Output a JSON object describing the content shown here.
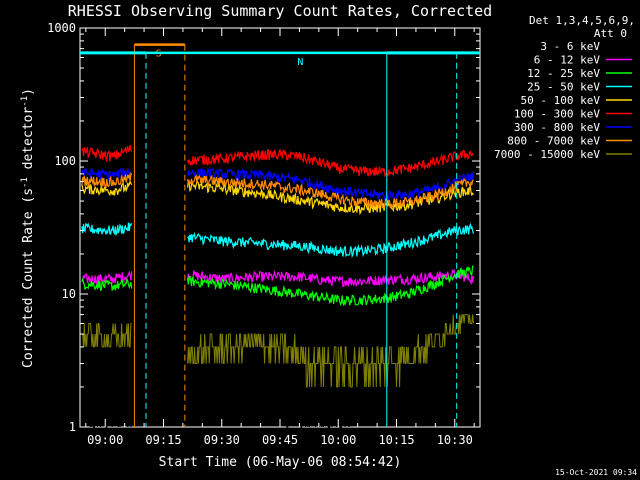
{
  "chart_data": {
    "type": "line",
    "title": "RHESSI Observing Summary Count Rates, Corrected",
    "xlabel": "Start Time (06-May-06 08:54:42)",
    "ylabel": "Corrected Count Rate (s",
    "ylabel_sup1": "-1",
    "ylabel_mid": " detector",
    "ylabel_sup2": "-1",
    "ylabel_end": ")",
    "y_scale": "log",
    "ylim": [
      1,
      1000
    ],
    "xlim_minutes": [
      -6.5,
      96.5
    ],
    "xtick_labels": [
      "09:00",
      "09:15",
      "09:30",
      "09:45",
      "10:00",
      "10:15",
      "10:30"
    ],
    "xtick_minutes": [
      0,
      15,
      30,
      45,
      60,
      75,
      90
    ],
    "ytick_labels": [
      "1",
      "10",
      "100",
      "1000"
    ],
    "ytick_values": [
      1,
      10,
      100,
      1000
    ],
    "grid": false,
    "legend_position": "right",
    "legend_header": "Det 1,3,4,5,6,9,",
    "legend_header2": "Att 0",
    "series": [
      {
        "name": "3 - 6 keV",
        "color": "#000000",
        "x": [
          -6,
          2,
          7,
          13,
          21,
          28,
          35,
          42,
          50,
          55,
          60,
          66,
          72,
          74,
          78,
          85,
          90,
          95
        ],
        "y": [
          1.8,
          2.0,
          2.6,
          null,
          3.0,
          3.0,
          3.0,
          2.8,
          2.0,
          1.9,
          2.0,
          2.6,
          2.8,
          2.9,
          3.0,
          3.0,
          3.0,
          3.0
        ]
      },
      {
        "name": "6 - 12 keV",
        "color": "#ff00ff",
        "x": [
          -6,
          2,
          7,
          13,
          21,
          30,
          40,
          50,
          55,
          60,
          66,
          72,
          78,
          85,
          90,
          95
        ],
        "y": [
          13,
          13,
          14,
          null,
          14,
          13,
          13.5,
          13.5,
          12.8,
          12.5,
          12.5,
          12.8,
          13,
          13.5,
          14,
          13
        ]
      },
      {
        "name": "12 - 25 keV",
        "color": "#00ff00",
        "x": [
          -6,
          2,
          7,
          13,
          21,
          30,
          40,
          50,
          55,
          60,
          66,
          72,
          78,
          85,
          90,
          95
        ],
        "y": [
          12,
          11.5,
          12,
          null,
          12.5,
          12,
          11,
          10,
          9.5,
          9,
          9,
          9.3,
          10,
          12,
          14,
          15
        ]
      },
      {
        "name": "25 - 50 keV",
        "color": "#00ffff",
        "x": [
          -6,
          2,
          7,
          13,
          21,
          30,
          40,
          50,
          55,
          60,
          66,
          72,
          78,
          85,
          90,
          95
        ],
        "y": [
          31,
          30,
          32,
          null,
          27,
          25,
          24,
          23,
          22,
          21,
          21,
          22,
          24,
          27,
          30,
          31
        ]
      },
      {
        "name": "50 - 100 keV",
        "color": "#ffd700",
        "x": [
          -6,
          2,
          7,
          13,
          21,
          30,
          40,
          50,
          55,
          60,
          66,
          72,
          78,
          85,
          90,
          95
        ],
        "y": [
          62,
          60,
          65,
          null,
          66,
          62,
          57,
          51,
          48,
          45,
          44,
          45,
          47,
          52,
          58,
          60
        ]
      },
      {
        "name": "100 - 300 keV",
        "color": "#ff0000",
        "x": [
          -6,
          2,
          7,
          13,
          21,
          30,
          40,
          45,
          50,
          55,
          60,
          66,
          72,
          78,
          85,
          90,
          95
        ],
        "y": [
          118,
          108,
          125,
          null,
          101,
          104,
          111,
          112,
          108,
          98,
          88,
          84,
          83,
          88,
          98,
          108,
          115
        ]
      },
      {
        "name": "300 - 800 keV",
        "color": "#0000ff",
        "x": [
          -6,
          2,
          7,
          13,
          21,
          30,
          40,
          50,
          55,
          60,
          66,
          72,
          78,
          85,
          90,
          95
        ],
        "y": [
          82,
          78,
          85,
          null,
          82,
          80,
          78,
          72,
          66,
          60,
          57,
          55,
          56,
          62,
          70,
          78
        ]
      },
      {
        "name": "800 - 7000 keV",
        "color": "#ff8c00",
        "x": [
          -6,
          2,
          7,
          13,
          21,
          30,
          40,
          50,
          55,
          60,
          66,
          72,
          78,
          85,
          90,
          95
        ],
        "y": [
          72,
          69,
          75,
          null,
          73,
          70,
          67,
          61,
          57,
          52,
          49,
          48,
          49,
          55,
          64,
          71
        ]
      },
      {
        "name": "7000 - 15000 keV",
        "color": "#808000",
        "x": [
          -6,
          2,
          7,
          13,
          21,
          30,
          40,
          50,
          55,
          60,
          66,
          72,
          78,
          85,
          90,
          95
        ],
        "y": [
          5,
          4.5,
          5,
          null,
          3.5,
          4.0,
          4.3,
          3.5,
          3.2,
          3.0,
          3.0,
          3.0,
          3.5,
          4.5,
          6,
          6.5
        ]
      }
    ],
    "annotations": [
      {
        "label": "S",
        "color": "#ff8c00",
        "x_start": 7.5,
        "x_end": 20.5,
        "line_style": "solid_then_dashed",
        "level": 750
      },
      {
        "label": "N",
        "color": "#00ffff",
        "x_start": 10.5,
        "x_end": 90.5,
        "line_style": "dashed",
        "level": 650
      },
      {
        "label": "",
        "color": "#00ffff",
        "x_start": -6.5,
        "x_end": 10.5,
        "line_style": "bar",
        "level": 650
      },
      {
        "label": "",
        "color": "#00ffff",
        "x_start": 72.5,
        "x_end": 96.5,
        "line_style": "bar",
        "level": 650
      }
    ]
  },
  "timestamp": "15-Oct-2021 09:34"
}
